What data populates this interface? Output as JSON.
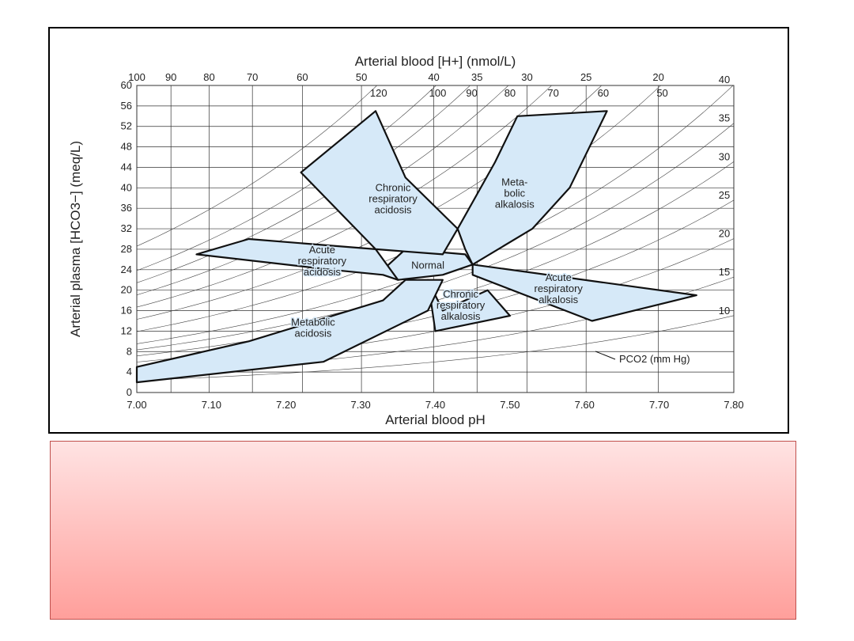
{
  "chart_data": {
    "type": "area",
    "title": "",
    "xlabel": "Arterial blood pH",
    "x2label": "Arterial blood [H+] (nmol/L)",
    "ylabel": "Arterial plasma [HCO3−] (meq/L)",
    "xlim": [
      7.0,
      7.8
    ],
    "ylim": [
      0,
      60
    ],
    "x_ticks": [
      "7.00",
      "7.10",
      "7.20",
      "7.30",
      "7.40",
      "7.50",
      "7.60",
      "7.70",
      "7.80"
    ],
    "y_ticks": [
      "0",
      "4",
      "8",
      "12",
      "16",
      "20",
      "24",
      "28",
      "32",
      "36",
      "40",
      "44",
      "48",
      "52",
      "56",
      "60"
    ],
    "h_ticks": [
      "100",
      "90",
      "80",
      "70",
      "60",
      "50",
      "40",
      "35",
      "30",
      "25",
      "20"
    ],
    "pco2_label": "PCO2 (mm Hg)",
    "pco2_isopleths": [
      10,
      15,
      20,
      25,
      30,
      35,
      40,
      50,
      60,
      70,
      80,
      90,
      100,
      120
    ],
    "region_color": "#d6e9f8",
    "regions": [
      {
        "name": "Normal",
        "label": [
          "Normal"
        ],
        "points": [
          [
            7.35,
            22
          ],
          [
            7.41,
            23
          ],
          [
            7.45,
            25
          ],
          [
            7.44,
            27
          ],
          [
            7.36,
            28
          ],
          [
            7.33,
            24
          ]
        ]
      },
      {
        "name": "Acute respiratory acidosis",
        "label": [
          "Acute",
          "respiratory",
          "acidosis"
        ],
        "points": [
          [
            7.15,
            30
          ],
          [
            7.32,
            28
          ],
          [
            7.35,
            22
          ],
          [
            7.33,
            23
          ],
          [
            7.26,
            24
          ],
          [
            7.08,
            27
          ]
        ]
      },
      {
        "name": "Chronic respiratory acidosis",
        "label": [
          "Chronic",
          "respiratory",
          "acidosis"
        ],
        "points": [
          [
            7.22,
            43
          ],
          [
            7.32,
            55
          ],
          [
            7.36,
            42
          ],
          [
            7.43,
            32
          ],
          [
            7.41,
            27
          ],
          [
            7.32,
            28
          ]
        ]
      },
      {
        "name": "Metabolic alkalosis",
        "label": [
          "Meta-",
          "bolic",
          "alkalosis"
        ],
        "points": [
          [
            7.51,
            54
          ],
          [
            7.63,
            55
          ],
          [
            7.58,
            40
          ],
          [
            7.53,
            32
          ],
          [
            7.45,
            25
          ],
          [
            7.44,
            28
          ],
          [
            7.43,
            32
          ],
          [
            7.48,
            45
          ]
        ]
      },
      {
        "name": "Acute respiratory alkalosis",
        "label": [
          "Acute",
          "respiratory",
          "alkalosis"
        ],
        "points": [
          [
            7.45,
            25
          ],
          [
            7.75,
            19
          ],
          [
            7.61,
            14
          ],
          [
            7.45,
            23
          ]
        ]
      },
      {
        "name": "Chronic respiratory alkalosis",
        "label": [
          "Chronic",
          "respiratory",
          "alkalosis"
        ],
        "points": [
          [
            7.41,
            16
          ],
          [
            7.47,
            20
          ],
          [
            7.5,
            15
          ],
          [
            7.4,
            12
          ],
          [
            7.39,
            22
          ]
        ]
      },
      {
        "name": "Metabolic acidosis",
        "label": [
          "Metabolic",
          "acidosis"
        ],
        "points": [
          [
            7.0,
            5
          ],
          [
            7.15,
            10
          ],
          [
            7.33,
            18
          ],
          [
            7.36,
            22
          ],
          [
            7.41,
            22
          ],
          [
            7.39,
            16
          ],
          [
            7.25,
            6
          ],
          [
            7.0,
            2
          ]
        ]
      }
    ]
  }
}
